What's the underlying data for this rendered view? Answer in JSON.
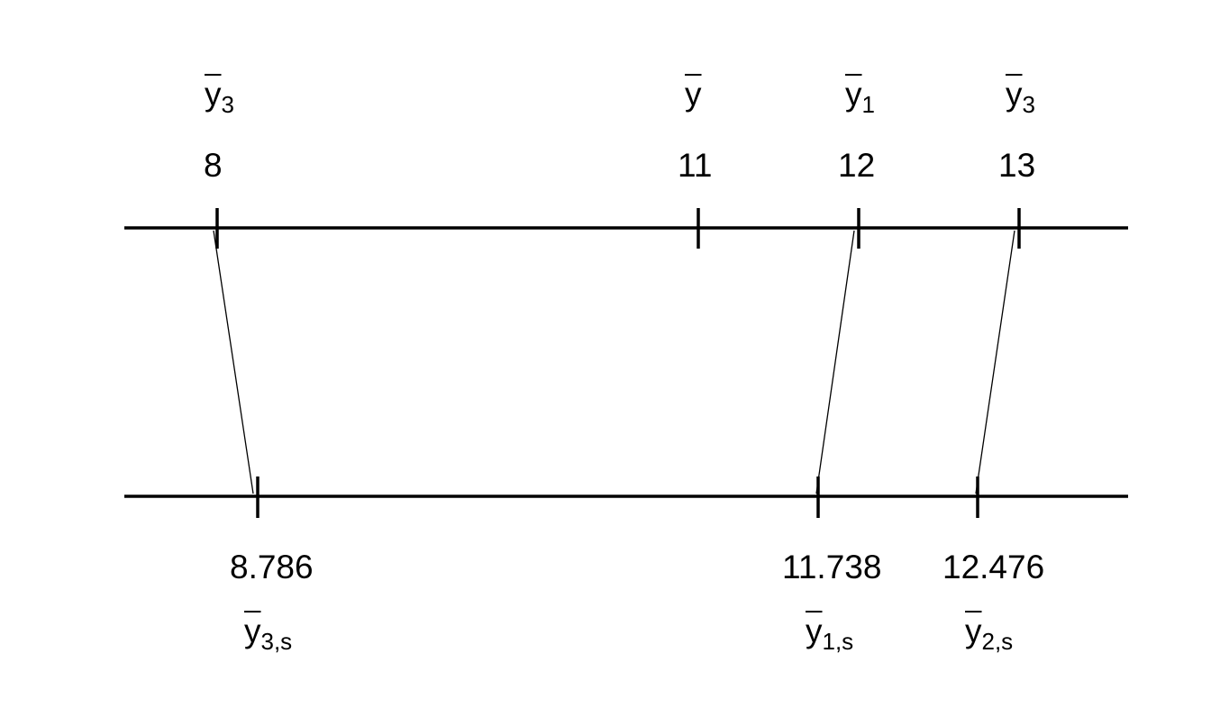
{
  "colors": {
    "ink": "#000000",
    "background": "#ffffff"
  },
  "top_axis": {
    "points": [
      {
        "value": "8",
        "symbol": "y",
        "subscript": "3"
      },
      {
        "value": "11",
        "symbol": "y",
        "subscript": ""
      },
      {
        "value": "12",
        "symbol": "y",
        "subscript": "1"
      },
      {
        "value": "13",
        "symbol": "y",
        "subscript": "3"
      }
    ]
  },
  "bottom_axis": {
    "points": [
      {
        "value": "8.786",
        "symbol": "y",
        "subscript": "3,s"
      },
      {
        "value": "11.738",
        "symbol": "y",
        "subscript": "1,s"
      },
      {
        "value": "12.476",
        "symbol": "y",
        "subscript": "2,s"
      }
    ]
  },
  "connections": [
    {
      "from": "8",
      "to": "8.786"
    },
    {
      "from": "12",
      "to": "11.738"
    },
    {
      "from": "13",
      "to": "12.476"
    }
  ]
}
